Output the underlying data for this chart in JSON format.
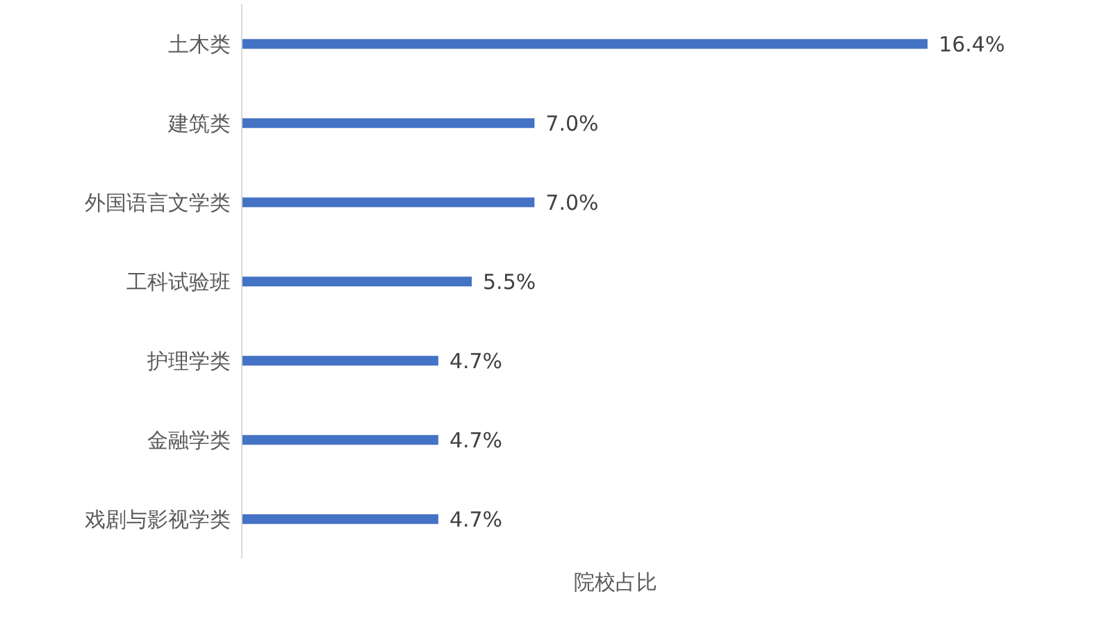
{
  "chart_data": {
    "type": "bar",
    "orientation": "horizontal",
    "xlabel": "院校占比",
    "categories": [
      "土木类",
      "建筑类",
      "外国语言文学类",
      "工科试验班",
      "护理学类",
      "金融学类",
      "戏剧与影视学类"
    ],
    "values": [
      16.4,
      7.0,
      7.0,
      5.5,
      4.7,
      4.7,
      4.7
    ],
    "value_labels": [
      "16.4%",
      "7.0%",
      "7.0%",
      "5.5%",
      "4.7%",
      "4.7%",
      "4.7%"
    ],
    "color": "#4472c4",
    "tick_labels": "y",
    "grid": false,
    "legend": false
  }
}
